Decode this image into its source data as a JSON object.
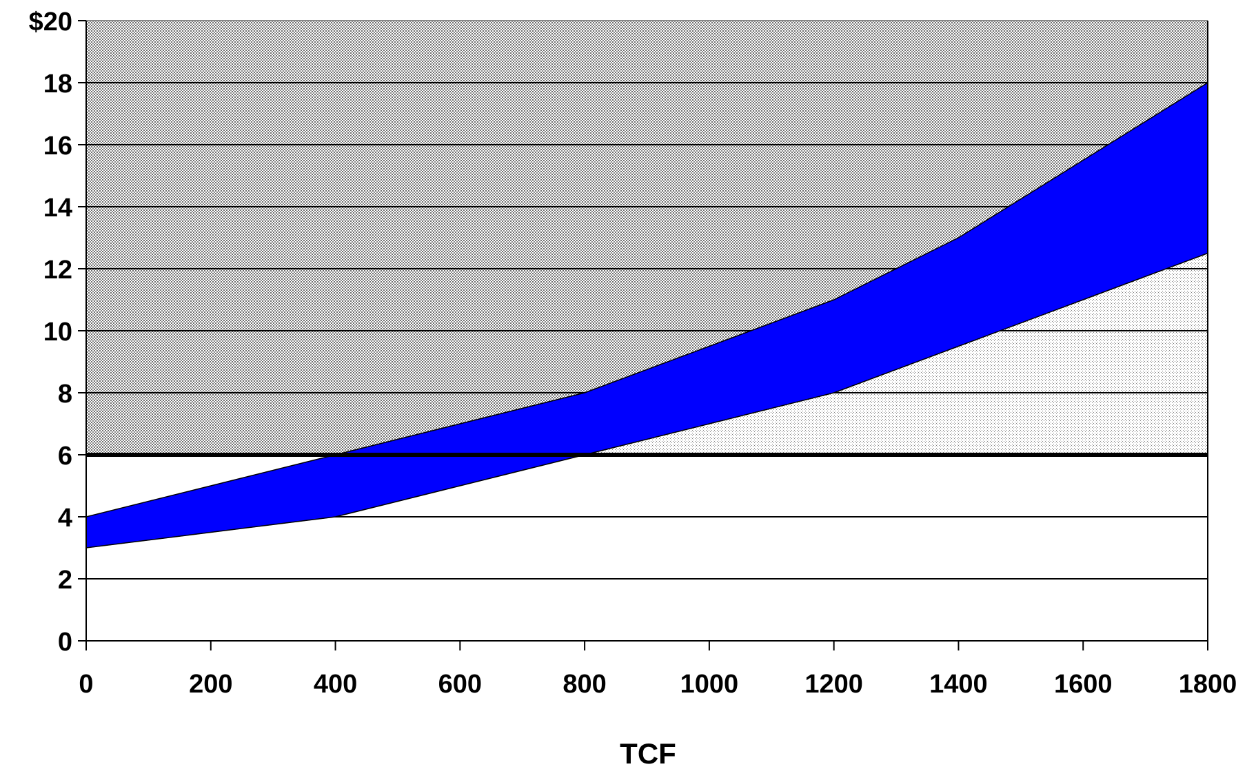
{
  "chart_data": {
    "type": "area",
    "title": "",
    "xlabel": "TCF",
    "ylabel": "",
    "xlim": [
      0,
      1800
    ],
    "ylim": [
      0,
      20
    ],
    "x_ticks": [
      {
        "value": 0,
        "label": "0"
      },
      {
        "value": 200,
        "label": "200"
      },
      {
        "value": 400,
        "label": "400"
      },
      {
        "value": 600,
        "label": "600"
      },
      {
        "value": 800,
        "label": "800"
      },
      {
        "value": 1000,
        "label": "1000"
      },
      {
        "value": 1200,
        "label": "1200"
      },
      {
        "value": 1400,
        "label": "1400"
      },
      {
        "value": 1600,
        "label": "1600"
      },
      {
        "value": 1800,
        "label": "1800"
      }
    ],
    "y_ticks": [
      {
        "value": 0,
        "label": "0"
      },
      {
        "value": 2,
        "label": "2"
      },
      {
        "value": 4,
        "label": "4"
      },
      {
        "value": 6,
        "label": "6"
      },
      {
        "value": 8,
        "label": "8"
      },
      {
        "value": 10,
        "label": "10"
      },
      {
        "value": 12,
        "label": "12"
      },
      {
        "value": 14,
        "label": "14"
      },
      {
        "value": 16,
        "label": "16"
      },
      {
        "value": 18,
        "label": "18"
      },
      {
        "value": 20,
        "label": "$20"
      }
    ],
    "grid": true,
    "reference_line": {
      "y": 6
    },
    "shaded_region_above": {
      "from": 6,
      "to": 20
    },
    "x": [
      0,
      200,
      400,
      600,
      800,
      1000,
      1200,
      1400,
      1600,
      1800
    ],
    "series": [
      {
        "values": [
          4.0,
          5.0,
          6.0,
          7.0,
          8.0,
          9.5,
          11.0,
          13.0,
          15.5,
          18.0
        ]
      },
      {
        "values": [
          3.0,
          3.5,
          4.0,
          5.0,
          6.0,
          7.0,
          8.0,
          9.5,
          11.0,
          12.5
        ]
      }
    ],
    "colors": {
      "band": "#0000ff",
      "dense_pattern": "#6e6e6e",
      "light_pattern": "#9a9a9a",
      "line": "#000000"
    }
  }
}
